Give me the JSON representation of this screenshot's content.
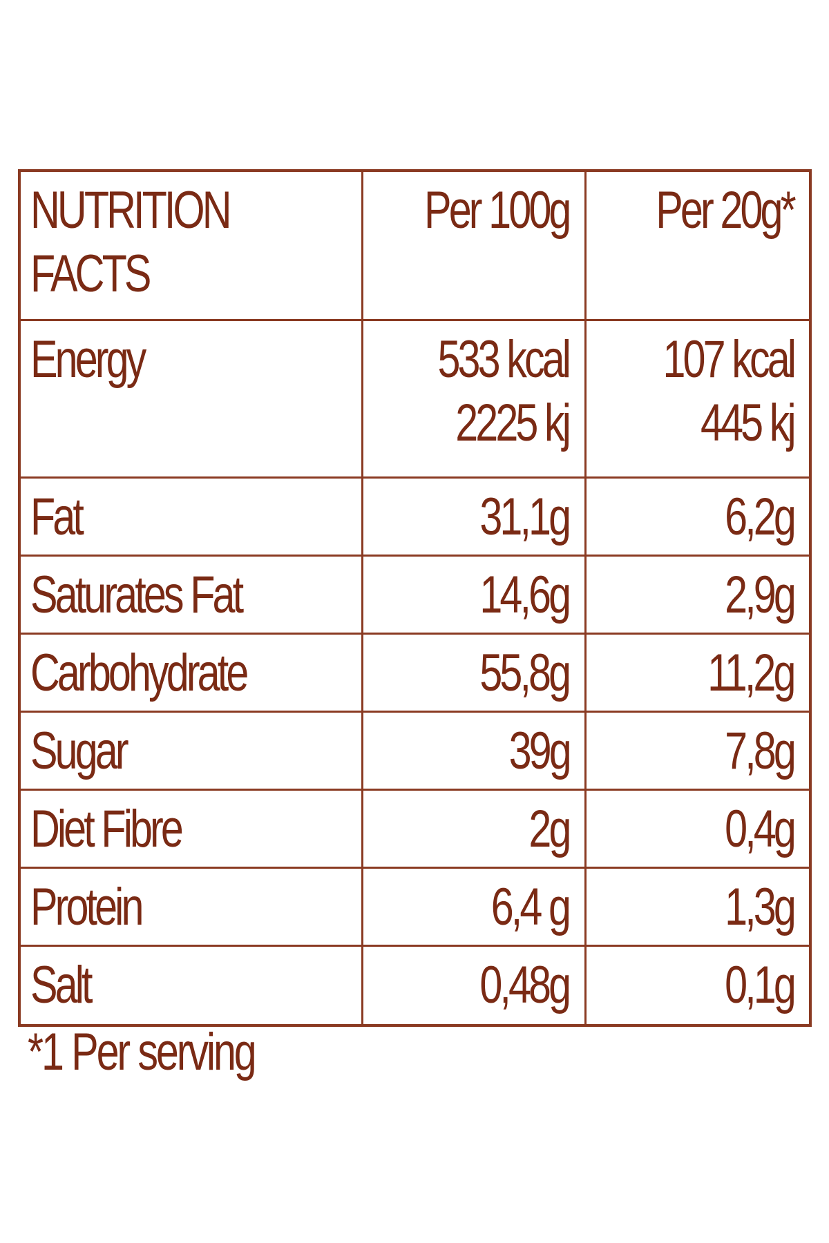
{
  "header": {
    "title_line1": "NUTRITION",
    "title_line2": "FACTS",
    "col1": "Per 100g",
    "col2": "Per 20g*"
  },
  "rows": [
    {
      "label": "Energy",
      "per100": [
        "533 kcal",
        "2225 kj"
      ],
      "per20": [
        "107 kcal",
        "445 kj"
      ]
    },
    {
      "label": "Fat",
      "per100": [
        "31,1g"
      ],
      "per20": [
        "6,2g"
      ]
    },
    {
      "label": "Saturates Fat",
      "per100": [
        "14,6g"
      ],
      "per20": [
        "2,9g"
      ]
    },
    {
      "label": "Carbohydrate",
      "per100": [
        "55,8g"
      ],
      "per20": [
        "11,2g"
      ]
    },
    {
      "label": "Sugar",
      "per100": [
        "39g"
      ],
      "per20": [
        "7,8g"
      ]
    },
    {
      "label": "Diet Fibre",
      "per100": [
        "2g"
      ],
      "per20": [
        "0,4g"
      ]
    },
    {
      "label": "Protein",
      "per100": [
        "6,4 g"
      ],
      "per20": [
        "1,3g"
      ]
    },
    {
      "label": "Salt",
      "per100": [
        "0,48g"
      ],
      "per20": [
        "0,1g"
      ]
    }
  ],
  "footnote": "*1 Per serving",
  "colors": {
    "text": "#7a2a14",
    "border": "#8a3a22",
    "background": "#ffffff"
  }
}
